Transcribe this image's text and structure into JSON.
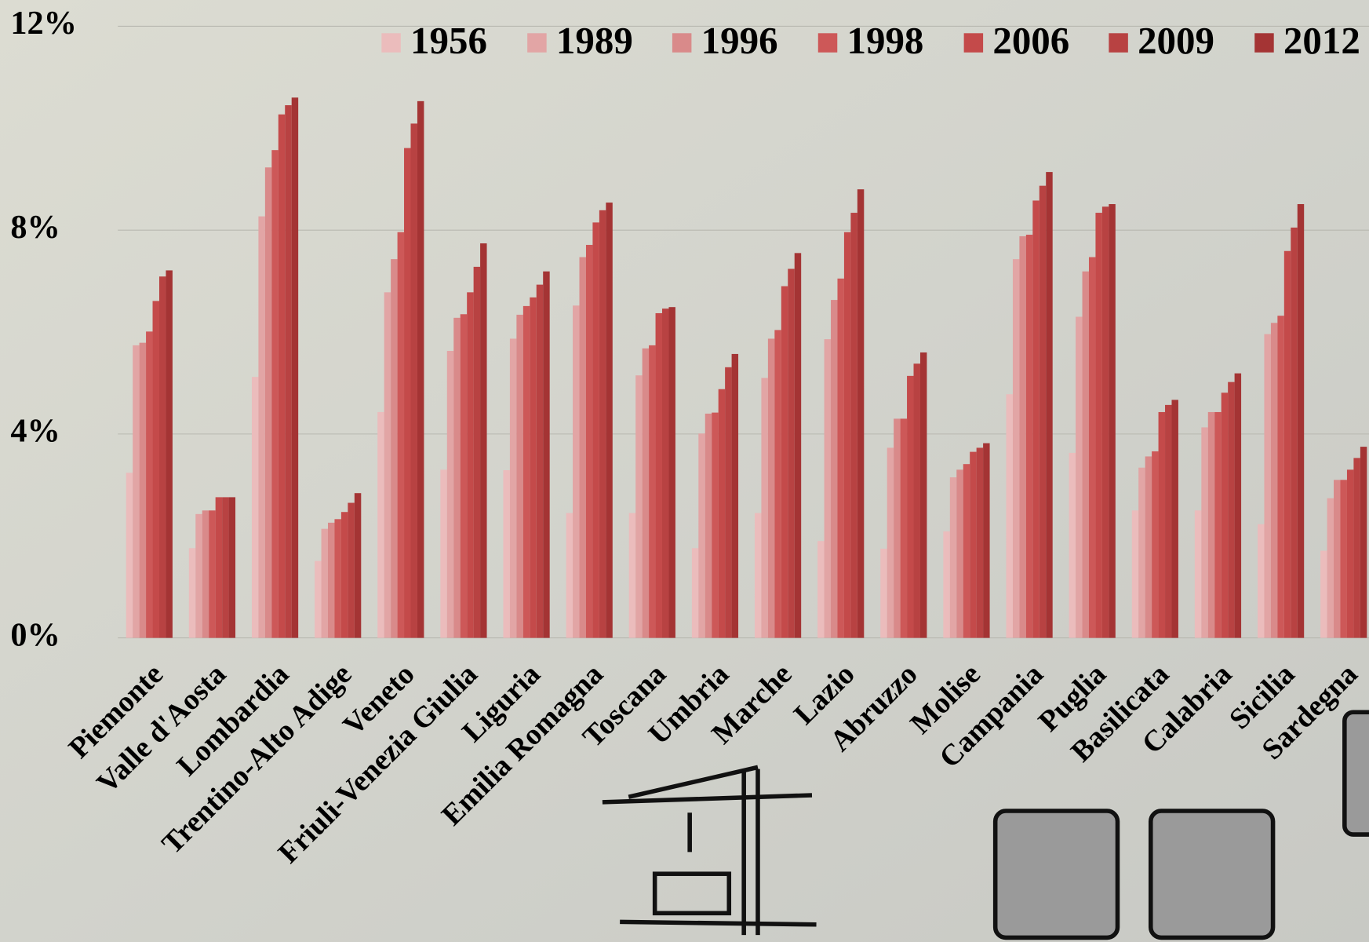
{
  "chart_data": {
    "type": "bar",
    "categories": [
      "Piemonte",
      "Valle d'Aosta",
      "Lombardia",
      "Trentino-Alto Adige",
      "Veneto",
      "Friuli-Venezia Giulia",
      "Liguria",
      "Emilia Romagna",
      "Toscana",
      "Umbria",
      "Marche",
      "Lazio",
      "Abruzzo",
      "Molise",
      "Campania",
      "Puglia",
      "Basilicata",
      "Calabria",
      "Sicilia",
      "Sardegna"
    ],
    "series": [
      {
        "name": "1956",
        "color": "#ebbcbc",
        "values": [
          3.24,
          1.76,
          5.12,
          1.51,
          4.43,
          3.3,
          3.29,
          2.45,
          2.45,
          1.76,
          2.45,
          1.9,
          1.75,
          2.09,
          4.78,
          3.63,
          2.5,
          2.5,
          2.23,
          1.71
        ]
      },
      {
        "name": "1989",
        "color": "#e2a5a5",
        "values": [
          5.74,
          2.43,
          8.27,
          2.14,
          6.78,
          5.63,
          5.87,
          6.52,
          5.15,
          4.01,
          5.1,
          5.86,
          3.73,
          3.15,
          7.43,
          6.3,
          3.34,
          4.13,
          5.96,
          2.74
        ]
      },
      {
        "name": "1996",
        "color": "#d98a8a",
        "values": [
          5.79,
          2.5,
          9.23,
          2.26,
          7.43,
          6.28,
          6.34,
          7.47,
          5.68,
          4.4,
          5.87,
          6.63,
          4.3,
          3.3,
          7.88,
          7.19,
          3.56,
          4.43,
          6.18,
          3.1
        ]
      },
      {
        "name": "1998",
        "color": "#cd5858",
        "values": [
          6.01,
          2.5,
          9.57,
          2.33,
          7.96,
          6.35,
          6.51,
          7.71,
          5.74,
          4.42,
          6.04,
          7.05,
          4.3,
          3.41,
          7.91,
          7.47,
          3.66,
          4.43,
          6.32,
          3.1
        ]
      },
      {
        "name": "2006",
        "color": "#c44a4a",
        "values": [
          6.61,
          2.76,
          10.27,
          2.47,
          9.61,
          6.78,
          6.68,
          8.15,
          6.37,
          4.88,
          6.9,
          7.96,
          5.14,
          3.65,
          8.58,
          8.34,
          4.43,
          4.81,
          7.59,
          3.3
        ]
      },
      {
        "name": "2009",
        "color": "#b84242",
        "values": [
          7.09,
          2.76,
          10.45,
          2.65,
          10.09,
          7.28,
          6.93,
          8.39,
          6.46,
          5.31,
          7.24,
          8.34,
          5.38,
          3.73,
          8.87,
          8.46,
          4.57,
          5.02,
          8.05,
          3.53
        ]
      },
      {
        "name": "2012",
        "color": "#a43434",
        "values": [
          7.21,
          2.76,
          10.6,
          2.84,
          10.53,
          7.74,
          7.19,
          8.54,
          6.49,
          5.57,
          7.55,
          8.8,
          5.6,
          3.82,
          9.14,
          8.51,
          4.67,
          5.19,
          8.51,
          3.75
        ]
      }
    ],
    "ylim": [
      0,
      12
    ],
    "yticks": [
      {
        "value": 0,
        "label": "0%"
      },
      {
        "value": 4,
        "label": "4%"
      },
      {
        "value": 8,
        "label": "8%"
      },
      {
        "value": 12,
        "label": "12%"
      }
    ],
    "grid": true,
    "legend": "top-right"
  }
}
